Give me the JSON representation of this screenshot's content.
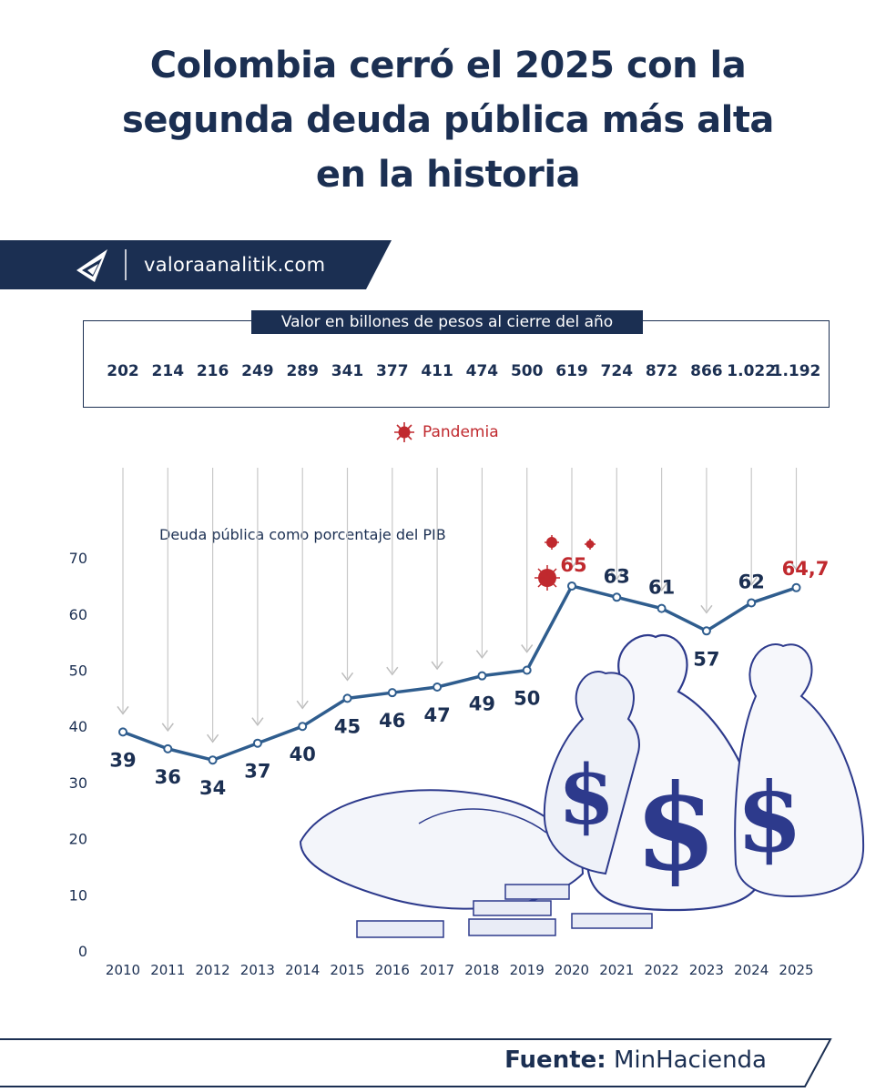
{
  "title": {
    "line1": "Colombia cerró el 2025 con la",
    "line2": "segunda deuda pública más alta",
    "line3": "en la historia"
  },
  "brand": {
    "site": "valoraanalitik.com"
  },
  "legend": {
    "pandemia": "Pandemia"
  },
  "source": {
    "label": "Fuente:",
    "name": "MinHacienda"
  },
  "colors": {
    "navy": "#1b2f52",
    "line": "#2f5d8e",
    "highlight": "#c0292e",
    "arrow": "#c8c8c8"
  },
  "chart_data": {
    "type": "line",
    "table_title": "Valor en billones de pesos al cierre del año",
    "debt_values": [
      "202",
      "214",
      "216",
      "249",
      "289",
      "341",
      "377",
      "411",
      "474",
      "500",
      "619",
      "724",
      "872",
      "866",
      "1.022",
      "1.192"
    ],
    "ylabel": "Deuda pública como porcentaje del PIB",
    "x": [
      "2010",
      "2011",
      "2012",
      "2013",
      "2014",
      "2015",
      "2016",
      "2017",
      "2018",
      "2019",
      "2020",
      "2021",
      "2022",
      "2023",
      "2024",
      "2025"
    ],
    "series": [
      {
        "values": [
          39,
          36,
          34,
          37,
          40,
          45,
          46,
          47,
          49,
          50,
          65,
          63,
          61,
          57,
          62,
          64.7
        ]
      }
    ],
    "labels": [
      "39",
      "36",
      "34",
      "37",
      "40",
      "45",
      "46",
      "47",
      "49",
      "50",
      "65",
      "63",
      "61",
      "57",
      "62",
      "64,7"
    ],
    "highlighted": [
      "2020",
      "2025"
    ],
    "yticks": [
      "0",
      "10",
      "20",
      "30",
      "40",
      "50",
      "60",
      "70"
    ],
    "ylim": [
      0,
      70
    ]
  }
}
